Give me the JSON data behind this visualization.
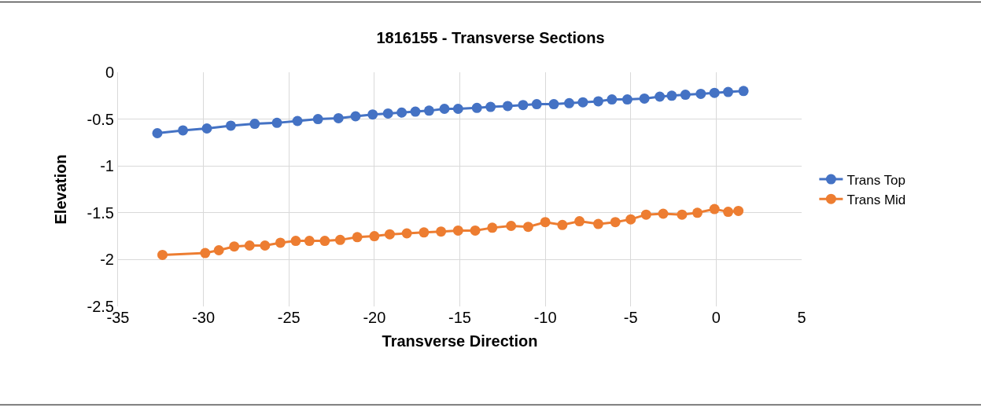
{
  "chart_data": {
    "type": "line",
    "title": "1816155 - Transverse Sections",
    "xlabel": "Transverse Direction",
    "ylabel": "Elevation",
    "xlim": [
      -35,
      5
    ],
    "xticks": [
      -35,
      -30,
      -25,
      -20,
      -15,
      -10,
      -5,
      0,
      5
    ],
    "ylim": [
      -2.5,
      0
    ],
    "yticks": [
      -2.5,
      -2,
      -1.5,
      -1,
      -0.5,
      0
    ],
    "grid": true,
    "legend": "right",
    "marker": "circle",
    "line_style": "solid",
    "series": [
      {
        "name": "Trans Top",
        "color": "#4472c4",
        "x": [
          -32.7,
          -31.2,
          -29.8,
          -28.4,
          -27.0,
          -25.7,
          -24.5,
          -23.3,
          -22.1,
          -21.1,
          -20.1,
          -19.2,
          -18.4,
          -17.6,
          -16.8,
          -15.9,
          -15.1,
          -14.0,
          -13.2,
          -12.2,
          -11.3,
          -10.5,
          -9.5,
          -8.6,
          -7.8,
          -6.9,
          -6.1,
          -5.2,
          -4.2,
          -3.3,
          -2.6,
          -1.8,
          -0.9,
          -0.1,
          0.7,
          1.6
        ],
        "values": [
          -0.65,
          -0.62,
          -0.6,
          -0.57,
          -0.55,
          -0.54,
          -0.52,
          -0.5,
          -0.49,
          -0.47,
          -0.45,
          -0.44,
          -0.43,
          -0.42,
          -0.41,
          -0.39,
          -0.39,
          -0.38,
          -0.37,
          -0.36,
          -0.35,
          -0.34,
          -0.34,
          -0.33,
          -0.32,
          -0.31,
          -0.29,
          -0.29,
          -0.28,
          -0.26,
          -0.25,
          -0.24,
          -0.23,
          -0.22,
          -0.21,
          -0.2
        ]
      },
      {
        "name": "Trans Mid",
        "color": "#ed7d31",
        "x": [
          -32.4,
          -29.9,
          -29.1,
          -28.2,
          -27.3,
          -26.4,
          -25.5,
          -24.6,
          -23.8,
          -22.9,
          -22.0,
          -21.0,
          -20.0,
          -19.1,
          -18.1,
          -17.1,
          -16.1,
          -15.1,
          -14.1,
          -13.1,
          -12.0,
          -11.0,
          -10.0,
          -9.0,
          -8.0,
          -6.9,
          -5.9,
          -5.0,
          -4.1,
          -3.1,
          -2.0,
          -1.1,
          -0.1,
          0.7,
          1.3
        ],
        "values": [
          -1.95,
          -1.93,
          -1.9,
          -1.86,
          -1.85,
          -1.85,
          -1.82,
          -1.8,
          -1.8,
          -1.8,
          -1.79,
          -1.76,
          -1.75,
          -1.73,
          -1.72,
          -1.71,
          -1.7,
          -1.69,
          -1.69,
          -1.66,
          -1.64,
          -1.65,
          -1.6,
          -1.63,
          -1.59,
          -1.62,
          -1.6,
          -1.57,
          -1.52,
          -1.51,
          -1.52,
          -1.5,
          -1.46,
          -1.49,
          -1.48
        ]
      }
    ]
  }
}
